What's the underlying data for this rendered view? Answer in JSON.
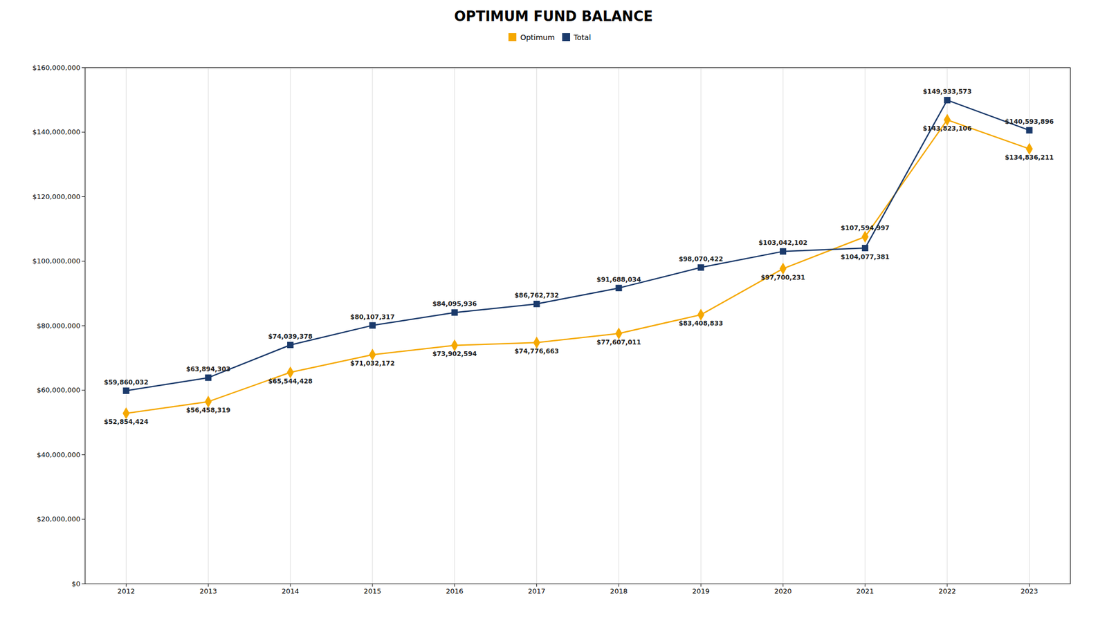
{
  "chart_data": {
    "type": "line",
    "title": "OPTIMUM FUND BALANCE",
    "x": [
      2012,
      2013,
      2014,
      2015,
      2016,
      2017,
      2018,
      2019,
      2020,
      2021,
      2022,
      2023
    ],
    "series": [
      {
        "name": "Optimum",
        "color": "#F5A800",
        "marker": "diamond",
        "values": [
          52854424,
          56458319,
          65544428,
          71032172,
          73902594,
          74776663,
          77607011,
          83408833,
          97700231,
          107594997,
          143823106,
          134836211
        ],
        "value_labels": [
          "$52,854,424",
          "$56,458,319",
          "$65,544,428",
          "$71,032,172",
          "$73,902,594",
          "$74,776,663",
          "$77,607,011",
          "$83,408,833",
          "$97,700,231",
          "$107,594,997",
          "$143,823,106",
          "$134,836,211"
        ]
      },
      {
        "name": "Total",
        "color": "#1B3A6B",
        "marker": "square",
        "values": [
          59860032,
          63894303,
          74039378,
          80107317,
          84095936,
          86762732,
          91688034,
          98070422,
          103042102,
          104077381,
          149933573,
          140593896
        ],
        "value_labels": [
          "$59,860,032",
          "$63,894,303",
          "$74,039,378",
          "$80,107,317",
          "$84,095,936",
          "$86,762,732",
          "$91,688,034",
          "$98,070,422",
          "$103,042,102",
          "$104,077,381",
          "$149,933,573",
          "$140,593,896"
        ]
      }
    ],
    "xlim": [
      2011.5,
      2023.5
    ],
    "xticks": [
      2012,
      2013,
      2014,
      2015,
      2016,
      2017,
      2018,
      2019,
      2020,
      2021,
      2022,
      2023
    ],
    "ylim": [
      0,
      160000000
    ],
    "yticks": [
      {
        "value": 0,
        "label": "$0"
      },
      {
        "value": 20000000,
        "label": "$20,000,000"
      },
      {
        "value": 40000000,
        "label": "$40,000,000"
      },
      {
        "value": 60000000,
        "label": "$60,000,000"
      },
      {
        "value": 80000000,
        "label": "$80,000,000"
      },
      {
        "value": 100000000,
        "label": "$100,000,000"
      },
      {
        "value": 120000000,
        "label": "$120,000,000"
      },
      {
        "value": 140000000,
        "label": "$140,000,000"
      },
      {
        "value": 160000000,
        "label": "$160,000,000"
      }
    ],
    "grid": "x",
    "legend": "top",
    "data_labels": true
  }
}
